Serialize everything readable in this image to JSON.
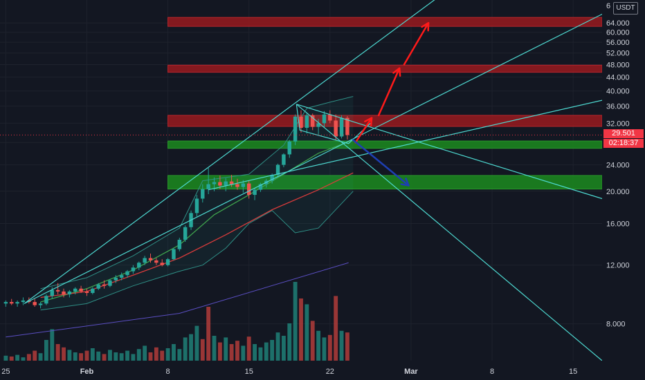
{
  "header": {
    "currency": "USDT"
  },
  "price_badges": {
    "last_price": "29.501",
    "countdown": "02:18:37"
  },
  "colors": {
    "background": "#131722",
    "bull": "#26a69a",
    "bear": "#ef5350",
    "trendline": "#4dd8d0",
    "resistance_zone": "#8b1a1f",
    "support_zone": "#1b7f1f",
    "arrow_up": "#ff1a1a",
    "arrow_down": "#1e3fb3",
    "last_price": "#f23645"
  },
  "chart_data": {
    "type": "candlestick",
    "y_scale": "log",
    "yticks": [
      "8.000",
      "12.000",
      "16.000",
      "20.000",
      "24.000",
      "28.000",
      "32.000",
      "36.000",
      "40.000",
      "44.000",
      "48.000",
      "52.000",
      "56.000",
      "60.000",
      "64.000"
    ],
    "ytick_values": [
      8,
      12,
      16,
      20,
      24,
      28,
      32,
      36,
      40,
      44,
      48,
      52,
      56,
      60,
      64
    ],
    "xticks": [
      {
        "label": "25",
        "day": 25,
        "bold": false
      },
      {
        "label": "Feb",
        "day": 32,
        "bold": true
      },
      {
        "label": "8",
        "day": 39,
        "bold": false
      },
      {
        "label": "15",
        "day": 46,
        "bold": false
      },
      {
        "label": "22",
        "day": 53,
        "bold": false
      },
      {
        "label": "Mar",
        "day": 60,
        "bold": true
      },
      {
        "label": "8",
        "day": 67,
        "bold": false
      },
      {
        "label": "15",
        "day": 74,
        "bold": false
      }
    ],
    "x_range_days": [
      24.5,
      76.5
    ],
    "y_range": [
      6.2,
      75
    ],
    "last_price": 29.501,
    "resistance_zones": [
      [
        62.5,
        66.5
      ],
      [
        45.5,
        47.8
      ],
      [
        31.3,
        33.8
      ]
    ],
    "support_zones": [
      [
        26.9,
        28.3
      ],
      [
        20.3,
        22.3
      ]
    ],
    "candles": [
      [
        25.0,
        9.2,
        9.4,
        9.0,
        9.3
      ],
      [
        25.5,
        9.3,
        9.5,
        9.1,
        9.2
      ],
      [
        26.0,
        9.2,
        9.4,
        9.0,
        9.3
      ],
      [
        26.5,
        9.3,
        9.6,
        9.1,
        9.4
      ],
      [
        27.0,
        9.4,
        9.6,
        9.2,
        9.3
      ],
      [
        27.5,
        9.3,
        9.5,
        9.0,
        9.1
      ],
      [
        28.0,
        9.1,
        9.3,
        8.9,
        9.2
      ],
      [
        28.5,
        9.2,
        9.8,
        9.1,
        9.7
      ],
      [
        29.0,
        9.7,
        10.3,
        9.5,
        10.1
      ],
      [
        29.5,
        10.1,
        10.6,
        9.8,
        10.0
      ],
      [
        30.0,
        10.0,
        10.2,
        9.6,
        9.8
      ],
      [
        30.5,
        9.8,
        10.1,
        9.6,
        10.0
      ],
      [
        31.0,
        10.0,
        10.3,
        9.8,
        10.2
      ],
      [
        31.5,
        10.2,
        10.4,
        9.9,
        10.0
      ],
      [
        32.0,
        10.0,
        10.2,
        9.7,
        9.9
      ],
      [
        32.5,
        9.9,
        10.3,
        9.8,
        10.2
      ],
      [
        33.0,
        10.2,
        10.6,
        10.1,
        10.5
      ],
      [
        33.5,
        10.5,
        10.8,
        10.2,
        10.4
      ],
      [
        34.0,
        10.4,
        10.9,
        10.3,
        10.8
      ],
      [
        34.5,
        10.8,
        11.2,
        10.6,
        11.0
      ],
      [
        35.0,
        11.0,
        11.4,
        10.8,
        11.2
      ],
      [
        35.5,
        11.2,
        11.6,
        11.0,
        11.5
      ],
      [
        36.0,
        11.5,
        12.0,
        11.3,
        11.8
      ],
      [
        36.5,
        11.8,
        12.3,
        11.6,
        12.2
      ],
      [
        37.0,
        12.2,
        12.8,
        12.0,
        12.6
      ],
      [
        37.5,
        12.6,
        13.0,
        12.2,
        12.4
      ],
      [
        38.0,
        12.4,
        12.6,
        12.0,
        12.2
      ],
      [
        38.5,
        12.2,
        12.5,
        11.9,
        12.0
      ],
      [
        39.0,
        12.0,
        12.6,
        11.9,
        12.5
      ],
      [
        39.5,
        12.5,
        13.5,
        12.4,
        13.4
      ],
      [
        40.0,
        13.4,
        14.5,
        13.2,
        14.3
      ],
      [
        40.5,
        14.3,
        15.8,
        14.1,
        15.6
      ],
      [
        41.0,
        15.6,
        17.5,
        15.3,
        17.2
      ],
      [
        41.5,
        17.2,
        19.5,
        16.8,
        19.0
      ],
      [
        42.0,
        19.0,
        21.0,
        18.5,
        20.3
      ],
      [
        42.5,
        20.3,
        23.5,
        19.6,
        21.0
      ],
      [
        43.0,
        21.0,
        22.0,
        20.0,
        21.3
      ],
      [
        43.5,
        21.3,
        22.3,
        20.3,
        20.8
      ],
      [
        44.0,
        20.8,
        21.9,
        20.0,
        21.4
      ],
      [
        44.5,
        21.4,
        22.4,
        20.6,
        21.0
      ],
      [
        45.0,
        21.0,
        21.8,
        20.2,
        20.6
      ],
      [
        45.5,
        20.6,
        21.6,
        19.8,
        21.1
      ],
      [
        46.0,
        21.1,
        21.5,
        19.0,
        19.5
      ],
      [
        46.5,
        19.5,
        20.4,
        18.8,
        20.2
      ],
      [
        47.0,
        20.2,
        21.2,
        19.9,
        21.0
      ],
      [
        47.5,
        21.0,
        21.8,
        20.5,
        21.5
      ],
      [
        48.0,
        21.5,
        22.6,
        21.1,
        22.4
      ],
      [
        48.5,
        22.4,
        24.2,
        22.0,
        24.0
      ],
      [
        49.0,
        24.0,
        26.0,
        23.6,
        25.8
      ],
      [
        49.5,
        25.8,
        28.5,
        25.2,
        28.2
      ],
      [
        50.0,
        28.2,
        34.0,
        27.5,
        33.5
      ],
      [
        50.5,
        33.5,
        35.0,
        30.0,
        31.0
      ],
      [
        51.0,
        31.0,
        34.5,
        29.8,
        33.8
      ],
      [
        51.5,
        33.8,
        34.2,
        30.5,
        31.2
      ],
      [
        52.0,
        31.2,
        33.0,
        29.6,
        32.0
      ],
      [
        52.5,
        32.0,
        34.8,
        31.0,
        34.0
      ],
      [
        53.0,
        34.0,
        35.0,
        32.0,
        32.6
      ],
      [
        53.5,
        32.6,
        34.0,
        28.5,
        29.2
      ],
      [
        54.0,
        29.2,
        33.8,
        28.8,
        33.2
      ],
      [
        54.5,
        33.2,
        33.6,
        28.6,
        29.5
      ]
    ],
    "volumes": [
      [
        25.0,
        0.6,
        1
      ],
      [
        25.5,
        0.5,
        0
      ],
      [
        26.0,
        0.7,
        1
      ],
      [
        26.5,
        0.4,
        1
      ],
      [
        27.0,
        0.8,
        0
      ],
      [
        27.5,
        1.2,
        0
      ],
      [
        28.0,
        0.9,
        1
      ],
      [
        28.5,
        2.5,
        1
      ],
      [
        29.0,
        3.8,
        1
      ],
      [
        29.5,
        2.0,
        0
      ],
      [
        30.0,
        1.6,
        0
      ],
      [
        30.5,
        1.3,
        1
      ],
      [
        31.0,
        1.0,
        1
      ],
      [
        31.5,
        0.9,
        0
      ],
      [
        32.0,
        1.2,
        0
      ],
      [
        32.5,
        1.5,
        1
      ],
      [
        33.0,
        1.1,
        1
      ],
      [
        33.5,
        0.8,
        0
      ],
      [
        34.0,
        1.3,
        1
      ],
      [
        34.5,
        1.0,
        1
      ],
      [
        35.0,
        0.9,
        1
      ],
      [
        35.5,
        1.2,
        1
      ],
      [
        36.0,
        0.8,
        1
      ],
      [
        36.5,
        1.4,
        1
      ],
      [
        37.0,
        1.8,
        1
      ],
      [
        37.5,
        1.0,
        0
      ],
      [
        38.0,
        1.6,
        0
      ],
      [
        38.5,
        1.2,
        0
      ],
      [
        39.0,
        1.5,
        1
      ],
      [
        39.5,
        2.0,
        1
      ],
      [
        40.0,
        1.4,
        1
      ],
      [
        40.5,
        2.8,
        1
      ],
      [
        41.0,
        3.2,
        1
      ],
      [
        41.5,
        4.2,
        1
      ],
      [
        42.0,
        2.6,
        0
      ],
      [
        42.5,
        6.5,
        0
      ],
      [
        43.0,
        3.0,
        1
      ],
      [
        43.5,
        2.2,
        0
      ],
      [
        44.0,
        2.8,
        1
      ],
      [
        44.5,
        2.0,
        0
      ],
      [
        45.0,
        2.4,
        0
      ],
      [
        45.5,
        1.8,
        1
      ],
      [
        46.0,
        2.9,
        0
      ],
      [
        46.5,
        2.0,
        1
      ],
      [
        47.0,
        1.6,
        1
      ],
      [
        47.5,
        2.2,
        1
      ],
      [
        48.0,
        2.5,
        1
      ],
      [
        48.5,
        3.4,
        1
      ],
      [
        49.0,
        3.0,
        1
      ],
      [
        49.5,
        4.5,
        1
      ],
      [
        50.0,
        9.5,
        1
      ],
      [
        50.5,
        7.5,
        0
      ],
      [
        51.0,
        6.8,
        1
      ],
      [
        51.5,
        4.8,
        0
      ],
      [
        52.0,
        3.6,
        1
      ],
      [
        52.5,
        2.8,
        1
      ],
      [
        53.0,
        3.1,
        0
      ],
      [
        53.5,
        7.8,
        0
      ],
      [
        54.0,
        3.6,
        1
      ],
      [
        54.5,
        3.4,
        0
      ]
    ],
    "ma_red": [
      [
        28,
        9.6
      ],
      [
        32,
        10.0
      ],
      [
        36,
        11.2
      ],
      [
        40,
        12.6
      ],
      [
        44,
        14.8
      ],
      [
        48,
        17.6
      ],
      [
        52,
        20.2
      ],
      [
        55,
        22.7
      ]
    ],
    "ma_green": [
      [
        28,
        9.3
      ],
      [
        32,
        10.2
      ],
      [
        36,
        11.6
      ],
      [
        40,
        13.8
      ],
      [
        43,
        17.0
      ],
      [
        46,
        19.5
      ],
      [
        49,
        22.5
      ],
      [
        52,
        26.0
      ],
      [
        55,
        28.5
      ]
    ],
    "bb_upper": [
      [
        28,
        10.2
      ],
      [
        32,
        11.0
      ],
      [
        36,
        12.8
      ],
      [
        40,
        15.5
      ],
      [
        42,
        21.5
      ],
      [
        46,
        22.5
      ],
      [
        49,
        27.5
      ],
      [
        51,
        35.5
      ],
      [
        53,
        37.0
      ],
      [
        55,
        38.5
      ]
    ],
    "bb_lower": [
      [
        28,
        8.8
      ],
      [
        32,
        9.2
      ],
      [
        36,
        10.4
      ],
      [
        40,
        11.5
      ],
      [
        42,
        12.0
      ],
      [
        44,
        13.5
      ],
      [
        46,
        16.0
      ],
      [
        48,
        17.5
      ],
      [
        50,
        15.0
      ],
      [
        52,
        15.5
      ],
      [
        55,
        20.0
      ]
    ],
    "trendlines": [
      {
        "from": [
          26.6,
          9.2
        ],
        "to": [
          66.0,
          95.0
        ]
      },
      {
        "from": [
          26.6,
          9.2
        ],
        "to": [
          76.5,
          68.0
        ]
      },
      {
        "from": [
          42.5,
          20.2
        ],
        "to": [
          76.5,
          37.5
        ]
      },
      {
        "from": [
          50.1,
          36.5
        ],
        "to": [
          76.5,
          19.0
        ]
      },
      {
        "from": [
          50.1,
          36.5
        ],
        "to": [
          76.5,
          6.2
        ]
      }
    ],
    "triangle": [
      [
        50.1,
        36.5
      ],
      [
        50.4,
        30.5
      ],
      [
        54.6,
        27.8
      ],
      [
        56.5,
        32.0
      ]
    ],
    "arrows_up": [
      {
        "from": [
          55.2,
          28.0
        ],
        "to": [
          56.6,
          33.2
        ]
      },
      {
        "from": [
          57.2,
          33.8
        ],
        "to": [
          59.0,
          46.8
        ]
      },
      {
        "from": [
          59.4,
          48.0
        ],
        "to": [
          61.5,
          64.0
        ]
      }
    ],
    "arrow_down": {
      "from": [
        55.0,
        28.5
      ],
      "to": [
        59.8,
        20.8
      ]
    }
  }
}
